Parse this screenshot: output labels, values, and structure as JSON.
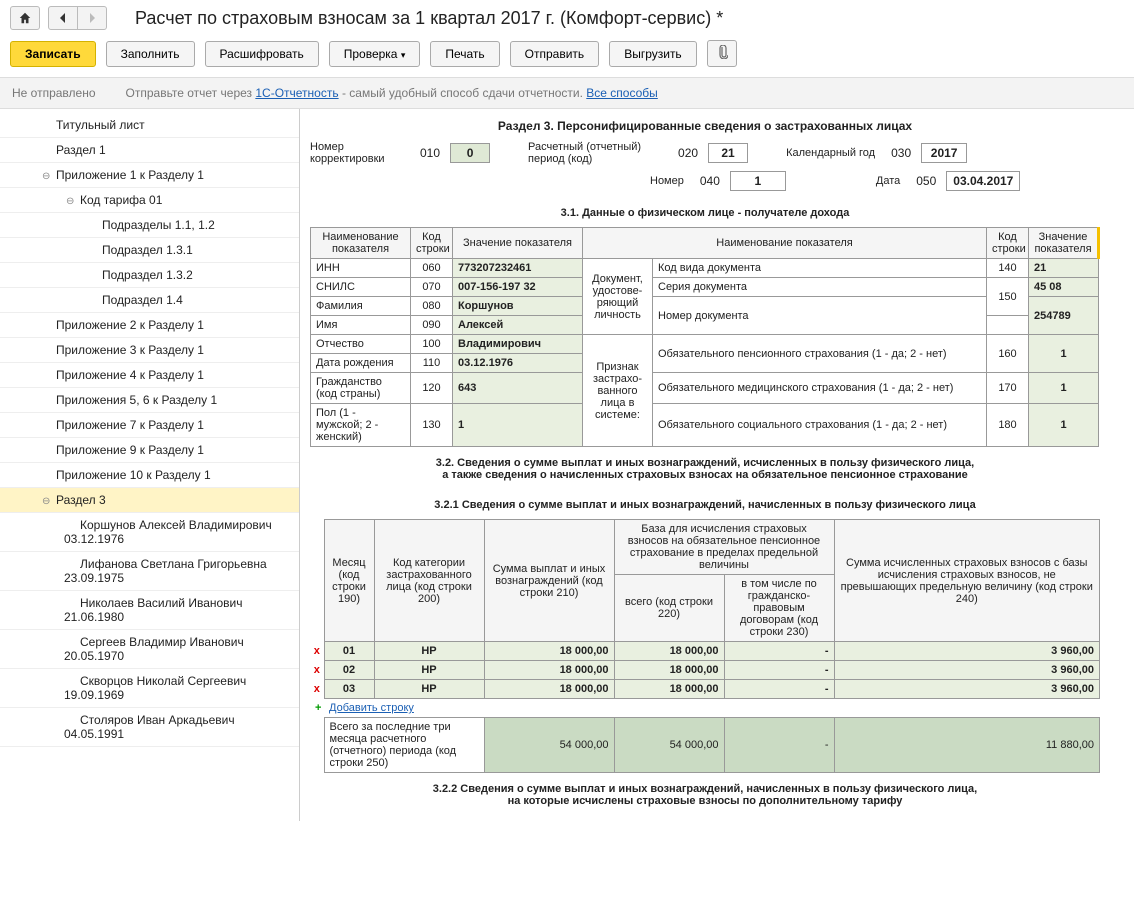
{
  "title": "Расчет по страховым взносам за 1 квартал 2017 г. (Комфорт-сервис) *",
  "toolbar": {
    "write": "Записать",
    "fill": "Заполнить",
    "decrypt": "Расшифровать",
    "check": "Проверка",
    "print": "Печать",
    "send": "Отправить",
    "export": "Выгрузить"
  },
  "status": {
    "state": "Не отправлено",
    "hint_pre": "Отправьте отчет через ",
    "hint_link": "1С-Отчетность",
    "hint_post": " - самый удобный способ сдачи отчетности. ",
    "all_methods": "Все способы"
  },
  "tree": [
    {
      "label": "Титульный лист",
      "pad": 40
    },
    {
      "label": "Раздел 1",
      "pad": 40
    },
    {
      "label": "Приложение 1 к Разделу 1",
      "pad": 40,
      "exp": true
    },
    {
      "label": "Код тарифа 01",
      "pad": 64,
      "exp": true
    },
    {
      "label": "Подразделы 1.1, 1.2",
      "pad": 86
    },
    {
      "label": "Подраздел 1.3.1",
      "pad": 86
    },
    {
      "label": "Подраздел 1.3.2",
      "pad": 86
    },
    {
      "label": "Подраздел 1.4",
      "pad": 86
    },
    {
      "label": "Приложение 2 к Разделу 1",
      "pad": 40
    },
    {
      "label": "Приложение 3 к Разделу 1",
      "pad": 40
    },
    {
      "label": "Приложение 4 к Разделу 1",
      "pad": 40
    },
    {
      "label": "Приложения 5, 6 к Разделу 1",
      "pad": 40
    },
    {
      "label": "Приложение 7 к Разделу 1",
      "pad": 40
    },
    {
      "label": "Приложение 9 к Разделу 1",
      "pad": 40
    },
    {
      "label": "Приложение 10 к Разделу 1",
      "pad": 40
    },
    {
      "label": "Раздел 3",
      "pad": 40,
      "exp": true,
      "selected": true
    },
    {
      "label": "Коршунов Алексей Владимирович 03.12.1976",
      "pad": 64
    },
    {
      "label": "Лифанова Светлана Григорьевна 23.09.1975",
      "pad": 64
    },
    {
      "label": "Николаев Василий Иванович 21.06.1980",
      "pad": 64
    },
    {
      "label": "Сергеев Владимир Иванович 20.05.1970",
      "pad": 64
    },
    {
      "label": "Скворцов Николай Сергеевич 19.09.1969",
      "pad": 64
    },
    {
      "label": "Столяров Иван Аркадьевич 04.05.1991",
      "pad": 64
    }
  ],
  "section3": {
    "title": "Раздел 3. Персонифицированные сведения о застрахованных лицах",
    "hdr": {
      "corr_label": "Номер корректировки",
      "corr_code": "010",
      "corr_val": "0",
      "period_label": "Расчетный (отчетный) период (код)",
      "period_code": "020",
      "period_val": "21",
      "year_label": "Календарный год",
      "year_code": "030",
      "year_val": "2017",
      "num_label": "Номер",
      "num_code": "040",
      "num_val": "1",
      "date_label": "Дата",
      "date_code": "050",
      "date_val": "03.04.2017"
    },
    "t31_title": "3.1. Данные о физическом лице - получателе дохода",
    "t31": {
      "h_name": "Наименование показателя",
      "h_code": "Код строки",
      "h_val": "Значение показателя",
      "inn_l": "ИНН",
      "inn_c": "060",
      "inn_v": "773207232461",
      "snils_l": "СНИЛС",
      "snils_c": "070",
      "snils_v": "007-156-197 32",
      "fam_l": "Фамилия",
      "fam_c": "080",
      "fam_v": "Коршунов",
      "name_l": "Имя",
      "name_c": "090",
      "name_v": "Алексей",
      "otch_l": "Отчество",
      "otch_c": "100",
      "otch_v": "Владимирович",
      "dob_l": "Дата рождения",
      "dob_c": "110",
      "dob_v": "03.12.1976",
      "cit_l": "Гражданство (код страны)",
      "cit_c": "120",
      "cit_v": "643",
      "sex_l": "Пол (1 - мужской; 2 - женский)",
      "sex_c": "130",
      "sex_v": "1",
      "doc_block": "Документ, удостове-ряющий личность",
      "doctype_l": "Код вида документа",
      "doctype_c": "140",
      "doctype_v": "21",
      "docser_l": "Серия документа",
      "docser_c": "150",
      "docser_v": "45 08",
      "docnum_l": "Номер документа",
      "docnum_v": "254789",
      "sign_block": "Признак застрахо-ванного лица в системе:",
      "ops_l": "Обязательного пенсионного страхования (1 - да; 2 - нет)",
      "ops_c": "160",
      "ops_v": "1",
      "oms_l": "Обязательного медицинского страхования (1 - да; 2 - нет)",
      "oms_c": "170",
      "oms_v": "1",
      "oss_l": "Обязательного социального страхования (1 - да; 2 - нет)",
      "oss_c": "180",
      "oss_v": "1"
    },
    "t32_title": "3.2. Сведения о сумме выплат и иных вознаграждений, исчисленных в пользу физического лица,\nа также сведения о начисленных страховых взносах на обязательное пенсионное страхование",
    "t321_title": "3.2.1 Сведения о сумме выплат и иных вознаграждений, начисленных в пользу физического лица",
    "t321": {
      "h_month": "Месяц (код строки 190)",
      "h_cat": "Код категории застрахованного лица (код строки 200)",
      "h_sum": "Сумма выплат и иных вознаграждений (код строки 210)",
      "h_base": "База для исчисления страховых взносов на обязательное пенсионное страхование в пределах предельной величины",
      "h_total": "всего (код строки 220)",
      "h_gpd": "в том числе по гражданско-правовым договорам (код строки 230)",
      "h_calc": "Сумма исчисленных страховых взносов с базы исчисления страховых взносов, не превышающих предельную величину (код строки 240)",
      "rows": [
        {
          "m": "01",
          "cat": "НР",
          "sum": "18 000,00",
          "tot": "18 000,00",
          "gpd": "-",
          "calc": "3 960,00"
        },
        {
          "m": "02",
          "cat": "НР",
          "sum": "18 000,00",
          "tot": "18 000,00",
          "gpd": "-",
          "calc": "3 960,00"
        },
        {
          "m": "03",
          "cat": "НР",
          "sum": "18 000,00",
          "tot": "18 000,00",
          "gpd": "-",
          "calc": "3 960,00"
        }
      ],
      "add_row": "Добавить строку",
      "total_l": "Всего за последние три месяца расчетного (отчетного) периода (код строки 250)",
      "total_sum": "54 000,00",
      "total_tot": "54 000,00",
      "total_gpd": "-",
      "total_calc": "11 880,00"
    },
    "t322_title": "3.2.2 Сведения о сумме выплат и иных вознаграждений, начисленных в пользу физического лица,\nна которые исчислены страховые взносы по дополнительному тарифу"
  }
}
